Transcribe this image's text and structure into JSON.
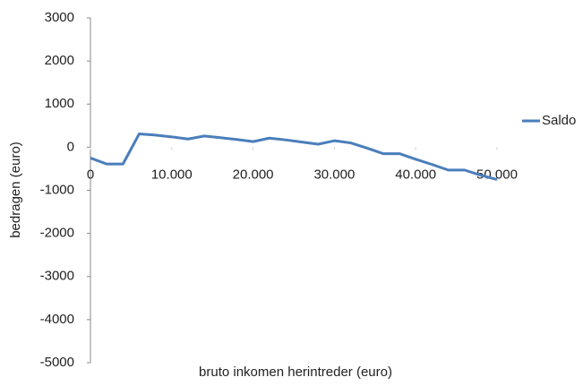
{
  "chart_data": {
    "type": "line",
    "xlabel": "bruto inkomen herintreder (euro)",
    "ylabel": "bedragen (euro)",
    "x": [
      0,
      2000,
      4000,
      6000,
      8000,
      10000,
      12000,
      14000,
      16000,
      18000,
      20000,
      22000,
      24000,
      26000,
      28000,
      30000,
      32000,
      34000,
      36000,
      38000,
      40000,
      42000,
      44000,
      46000,
      48000,
      50000
    ],
    "series": [
      {
        "name": "Saldo",
        "color": "#4a7ebb",
        "values": [
          -250,
          -390,
          -390,
          310,
          280,
          240,
          190,
          260,
          220,
          180,
          130,
          210,
          170,
          120,
          70,
          150,
          100,
          -20,
          -150,
          -150,
          -280,
          -400,
          -530,
          -530,
          -650,
          -750
        ]
      }
    ],
    "xlim": [
      0,
      50000
    ],
    "xticks": [
      0,
      {
        "value": 10000,
        "label": "10.000"
      },
      {
        "value": 20000,
        "label": "20.000"
      },
      {
        "value": 30000,
        "label": "30.000"
      },
      {
        "value": 40000,
        "label": "40.000"
      },
      {
        "value": 50000,
        "label": "50.000"
      }
    ],
    "ylim": [
      -5000,
      3000
    ],
    "yticks": [
      -5000,
      -4000,
      -3000,
      -2000,
      -1000,
      0,
      1000,
      2000,
      3000
    ],
    "legend": "right"
  }
}
